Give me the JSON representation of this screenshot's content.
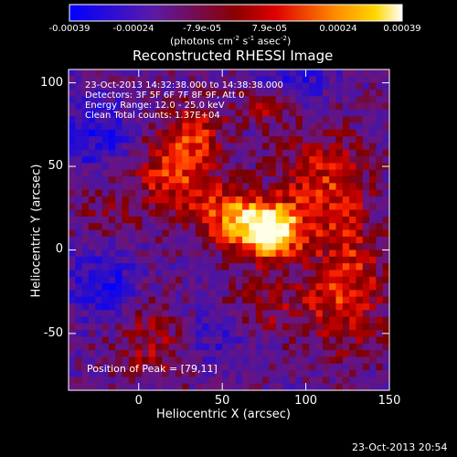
{
  "chart_data": {
    "type": "heatmap",
    "title": "Reconstructed RHESSI Image",
    "xlabel": "Heliocentric X (arcsec)",
    "ylabel": "Heliocentric Y (arcsec)",
    "xlim": [
      -42,
      150
    ],
    "ylim": [
      -84,
      108
    ],
    "x_ticks": [
      "0",
      "50",
      "100",
      "150"
    ],
    "x_tick_values": [
      0,
      50,
      100,
      150
    ],
    "y_ticks": [
      "100",
      "50",
      "0",
      "-50"
    ],
    "y_tick_values": [
      100,
      50,
      0,
      -50
    ],
    "colorbar": {
      "ticks": [
        "-0.00039",
        "-0.00024",
        "-7.9e-05",
        "7.9e-05",
        "0.00024",
        "0.00039"
      ],
      "tick_values": [
        -0.00039,
        -0.00024,
        -7.9e-05,
        7.9e-05,
        0.00024,
        0.00039
      ],
      "range": [
        -0.00039,
        0.00039
      ],
      "unit_label_prefix": "(photons cm",
      "unit_sup1": "-2",
      "unit_mid1": " s",
      "unit_sup2": "-1",
      "unit_mid2": " asec",
      "unit_sup3": "-2",
      "unit_suffix": ")"
    },
    "annotations": [
      "23-Oct-2013 14:32:38.000 to 14:38:38.000",
      "Detectors: 3F 5F 6F 7F 8F 9F, Att 0",
      "Energy Range: 12.0 - 25.0 keV",
      "Clean     Total counts: 1.37E+04"
    ],
    "peak_label": "Position of Peak = [79,11]",
    "peak_position": [
      79,
      11
    ],
    "colors": {
      "min": "#0000ff",
      "mid_low": "#4b0082",
      "mid": "#ff0000",
      "high": "#ffa500",
      "max": "#ffffff"
    }
  },
  "timestamp": "23-Oct-2013 20:54"
}
